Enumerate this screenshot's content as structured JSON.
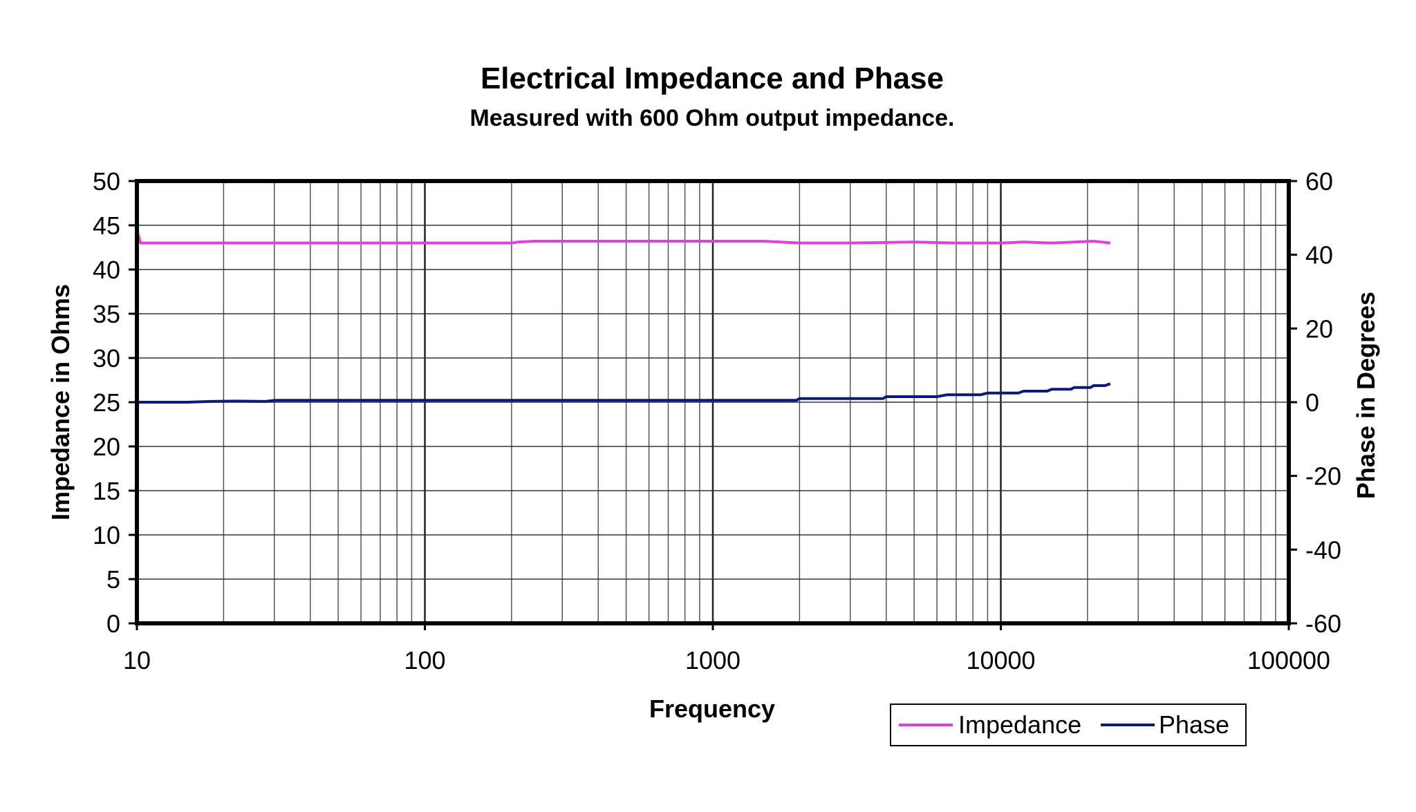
{
  "chart_data": {
    "type": "line",
    "title": "Electrical Impedance and Phase",
    "subtitle": "Measured with 600 Ohm output impedance.",
    "xlabel": "Frequency",
    "ylabel": "Impedance in Ohms",
    "y2label": "Phase in Degrees",
    "xscale": "log",
    "xlim": [
      10,
      100000
    ],
    "ylim": [
      0,
      50
    ],
    "y2lim": [
      -60,
      60
    ],
    "grid": true,
    "legend_placement": "bottom-right",
    "x_ticks": [
      "10",
      "100",
      "1000",
      "10000",
      "100000"
    ],
    "y_ticks": [
      "0",
      "5",
      "10",
      "15",
      "20",
      "25",
      "30",
      "35",
      "40",
      "45",
      "50"
    ],
    "y2_ticks": [
      "-60",
      "-40",
      "-20",
      "0",
      "20",
      "40",
      "60"
    ],
    "series": [
      {
        "name": "Impedance",
        "axis": "left",
        "color": "#e040e0",
        "x": [
          10,
          10.3,
          11,
          15,
          30,
          100,
          200,
          210,
          240,
          300,
          500,
          800,
          1000,
          1500,
          2000,
          3000,
          5000,
          7000,
          10000,
          12000,
          15000,
          18000,
          21000,
          24000
        ],
        "y": [
          44.5,
          43.0,
          43.0,
          43.0,
          43.0,
          43.0,
          43.0,
          43.1,
          43.2,
          43.2,
          43.2,
          43.2,
          43.2,
          43.2,
          43.0,
          43.0,
          43.1,
          43.0,
          43.0,
          43.1,
          43.0,
          43.1,
          43.2,
          43.0
        ]
      },
      {
        "name": "Phase",
        "axis": "right",
        "color": "#0a1a7a",
        "x": [
          10,
          15,
          18,
          22,
          28,
          30,
          100,
          1000,
          1950,
          2000,
          3900,
          4000,
          6000,
          6500,
          8500,
          9000,
          11500,
          12000,
          14500,
          15000,
          17500,
          18000,
          20500,
          21000,
          23000,
          24000
        ],
        "y": [
          0,
          0,
          0.2,
          0.3,
          0.2,
          0.5,
          0.5,
          0.5,
          0.5,
          1.0,
          1.0,
          1.5,
          1.5,
          2.0,
          2.0,
          2.5,
          2.5,
          3.0,
          3.0,
          3.5,
          3.5,
          4.0,
          4.0,
          4.5,
          4.5,
          5.0
        ]
      }
    ]
  }
}
